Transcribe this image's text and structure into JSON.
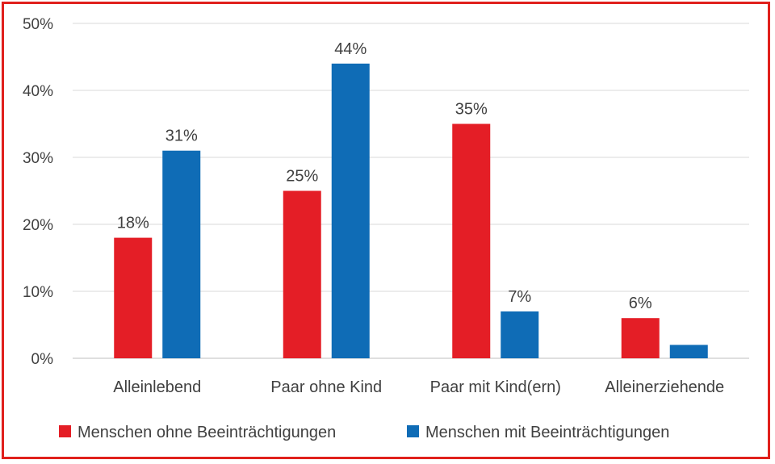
{
  "chart_data": {
    "type": "bar",
    "categories": [
      "Alleinlebend",
      "Paar ohne Kind",
      "Paar mit Kind(ern)",
      "Alleinerziehende"
    ],
    "series": [
      {
        "name": "Menschen ohne Beeinträchtigungen",
        "color": "#e41e26",
        "values": [
          18,
          25,
          35,
          6
        ],
        "labels": [
          "18%",
          "25%",
          "35%",
          "6%"
        ]
      },
      {
        "name": "Menschen mit Beeinträchtigungen",
        "color": "#0f6cb6",
        "values": [
          31,
          44,
          7,
          2
        ],
        "labels": [
          "31%",
          "44%",
          "7%",
          ""
        ]
      }
    ],
    "yticks": [
      "0%",
      "10%",
      "20%",
      "30%",
      "40%",
      "50%"
    ],
    "ylim": [
      0,
      50
    ],
    "grid": true,
    "legend": "bottom",
    "border_color": "#e0201c"
  }
}
